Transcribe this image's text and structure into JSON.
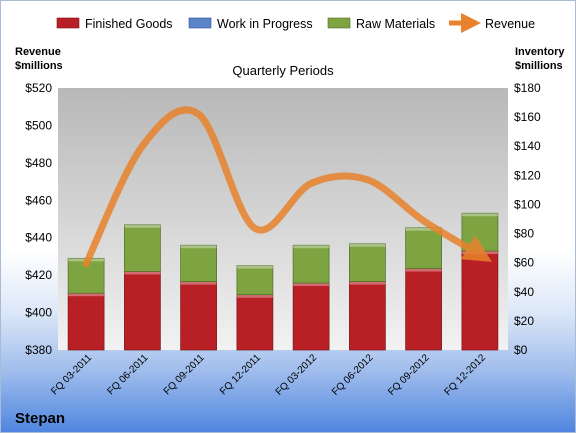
{
  "company": "Stepan",
  "colors": {
    "finished_goods": "#b82025",
    "work_in_progress": "#5a84c8",
    "raw_materials": "#7ea442",
    "revenue": "#e8822c"
  },
  "chart_data": {
    "type": "bar",
    "stacked": true,
    "title": "Quarterly Periods",
    "ylabel_left": [
      "Revenue",
      "$millions"
    ],
    "ylabel_right": [
      "Inventory",
      "$millions"
    ],
    "categories": [
      "FQ 03-2011",
      "FQ 06-2011",
      "FQ 09-2011",
      "FQ 12-2011",
      "FQ 03-2012",
      "FQ 06-2012",
      "FQ 09-2012",
      "FQ 12-2012"
    ],
    "series": [
      {
        "name": "Finished Goods",
        "axis": "right",
        "values": [
          39,
          54,
          47,
          38,
          46,
          47,
          56,
          68
        ]
      },
      {
        "name": "Work in Progress",
        "axis": "right",
        "values": [
          0,
          0,
          0,
          0,
          0,
          0,
          0,
          0
        ]
      },
      {
        "name": "Raw Materials",
        "axis": "right",
        "values": [
          24,
          32,
          25,
          20,
          26,
          26,
          28,
          26
        ]
      },
      {
        "name": "Revenue",
        "type": "line",
        "axis": "left",
        "values": [
          426,
          489,
          506,
          445,
          469,
          471,
          449,
          431
        ]
      }
    ],
    "ylim_left": [
      380,
      520
    ],
    "yticks_left": [
      "$380",
      "$400",
      "$420",
      "$440",
      "$460",
      "$480",
      "$500",
      "$520"
    ],
    "ylim_right": [
      0,
      180
    ],
    "yticks_right": [
      "$0",
      "$20",
      "$40",
      "$60",
      "$80",
      "$100",
      "$120",
      "$140",
      "$160",
      "$180"
    ],
    "legend": "top",
    "grid": false
  }
}
